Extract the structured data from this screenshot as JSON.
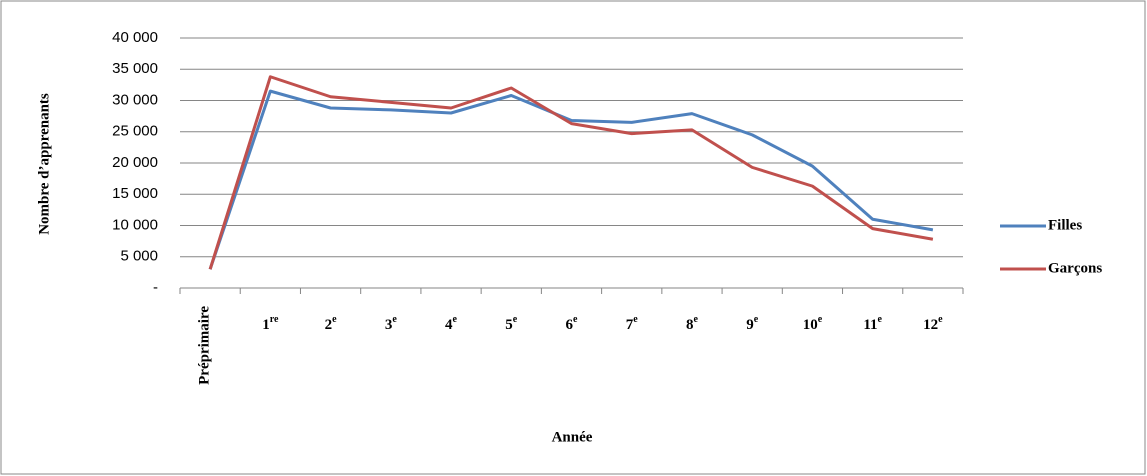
{
  "chart_data": {
    "type": "line",
    "x_label": "Année",
    "y_label": "Nombre d’apprenants",
    "categories": [
      "Préprimaire",
      "1re",
      "2e",
      "3e",
      "4e",
      "5e",
      "6e",
      "7e",
      "8e",
      "9e",
      "10e",
      "11e",
      "12e"
    ],
    "series": [
      {
        "name": "Filles",
        "color": "#4f81bd",
        "values": [
          3000,
          31500,
          28800,
          28500,
          28000,
          30800,
          26800,
          26500,
          27900,
          24500,
          19500,
          11000,
          9300
        ]
      },
      {
        "name": "Garçons",
        "color": "#c0504d",
        "values": [
          3000,
          33800,
          30600,
          29700,
          28800,
          32000,
          26300,
          24700,
          25300,
          19300,
          16300,
          9500,
          7800
        ]
      }
    ],
    "ylim": [
      0,
      40000
    ],
    "yticks": [
      {
        "value": 0,
        "label": "-"
      },
      {
        "value": 5000,
        "label": "5 000"
      },
      {
        "value": 10000,
        "label": "10 000"
      },
      {
        "value": 15000,
        "label": "15 000"
      },
      {
        "value": 20000,
        "label": "20 000"
      },
      {
        "value": 25000,
        "label": "25 000"
      },
      {
        "value": 30000,
        "label": "30 000"
      },
      {
        "value": 35000,
        "label": "35 000"
      },
      {
        "value": 40000,
        "label": "40 000"
      }
    ],
    "grid": true,
    "legend": "right"
  }
}
